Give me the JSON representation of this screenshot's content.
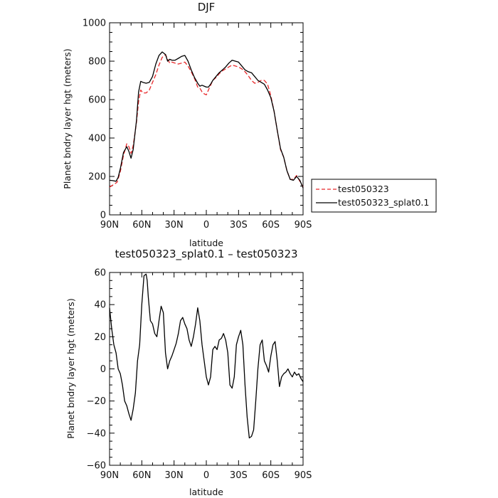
{
  "chart_data": [
    {
      "type": "line",
      "title": "DJF",
      "xlabel": "latitude",
      "ylabel": "Planet bndry layer hgt (meters)",
      "xlim": [
        90,
        -90
      ],
      "ylim": [
        0,
        1000
      ],
      "x_tick_values": [
        90,
        60,
        30,
        0,
        -30,
        -60,
        -90
      ],
      "x_tick_labels": [
        "90N",
        "60N",
        "30N",
        "0",
        "30S",
        "60S",
        "90S"
      ],
      "y_tick_values": [
        0,
        200,
        400,
        600,
        800,
        1000
      ],
      "y_tick_labels": [
        "0",
        "200",
        "400",
        "600",
        "800",
        "1000"
      ],
      "grid": false,
      "legend_position": "right",
      "series": [
        {
          "name": "test050323",
          "color": "#e8282a",
          "dash": "dashed",
          "x": [
            90,
            86,
            83,
            80,
            77,
            74,
            72,
            70,
            68,
            65,
            63,
            61,
            59,
            56,
            53,
            50,
            47,
            44,
            41,
            38,
            36,
            34,
            32,
            29,
            26,
            23,
            20,
            17,
            14,
            11,
            8,
            6,
            4,
            2,
            0,
            -2,
            -4,
            -6,
            -9,
            -12,
            -15,
            -18,
            -21,
            -24,
            -27,
            -30,
            -33,
            -36,
            -39,
            -42,
            -45,
            -48,
            -51,
            -54,
            -57,
            -60,
            -63,
            -66,
            -69,
            -72,
            -75,
            -78,
            -81,
            -84,
            -87,
            -90
          ],
          "y": [
            145,
            158,
            170,
            225,
            310,
            370,
            355,
            320,
            360,
            480,
            590,
            650,
            635,
            635,
            650,
            690,
            730,
            780,
            820,
            835,
            810,
            790,
            795,
            790,
            785,
            790,
            795,
            775,
            745,
            710,
            665,
            660,
            640,
            630,
            625,
            650,
            675,
            700,
            715,
            735,
            750,
            760,
            770,
            780,
            775,
            770,
            760,
            745,
            725,
            700,
            685,
            690,
            700,
            700,
            680,
            620,
            540,
            440,
            340,
            300,
            230,
            185,
            185,
            205,
            175,
            145
          ]
        },
        {
          "name": "test050323_splat0.1",
          "color": "#000000",
          "dash": "solid",
          "x": [
            90,
            87,
            84,
            82,
            80,
            77,
            74,
            72,
            70,
            68,
            65,
            63,
            61,
            59,
            56,
            53,
            50,
            47,
            44,
            41,
            38,
            36,
            34,
            32,
            29,
            26,
            23,
            20,
            17,
            14,
            11,
            8,
            6,
            4,
            2,
            0,
            -2,
            -4,
            -6,
            -9,
            -12,
            -15,
            -18,
            -21,
            -24,
            -27,
            -30,
            -33,
            -36,
            -39,
            -42,
            -45,
            -48,
            -51,
            -54,
            -57,
            -60,
            -63,
            -66,
            -69,
            -72,
            -75,
            -78,
            -81,
            -84,
            -87,
            -90
          ],
          "y": [
            180,
            178,
            175,
            195,
            240,
            325,
            355,
            330,
            295,
            340,
            490,
            640,
            695,
            690,
            685,
            690,
            720,
            785,
            830,
            848,
            835,
            800,
            810,
            805,
            805,
            815,
            825,
            830,
            800,
            755,
            715,
            685,
            670,
            675,
            670,
            665,
            665,
            680,
            700,
            720,
            740,
            755,
            770,
            790,
            805,
            800,
            795,
            775,
            755,
            745,
            740,
            720,
            700,
            690,
            680,
            650,
            610,
            540,
            440,
            345,
            300,
            230,
            185,
            180,
            200,
            180,
            140
          ]
        }
      ]
    },
    {
      "type": "line",
      "title": "test050323_splat0.1 – test050323",
      "xlabel": "latitude",
      "ylabel": "Planet bndry layer hgt (meters)",
      "xlim": [
        90,
        -90
      ],
      "ylim": [
        -60,
        60
      ],
      "x_tick_values": [
        90,
        60,
        30,
        0,
        -30,
        -60,
        -90
      ],
      "x_tick_labels": [
        "90N",
        "60N",
        "30N",
        "0",
        "30S",
        "60S",
        "90S"
      ],
      "y_tick_values": [
        -60,
        -40,
        -20,
        0,
        20,
        40,
        60
      ],
      "y_tick_labels": [
        "−60",
        "−40",
        "−20",
        "0",
        "20",
        "40",
        "60"
      ],
      "grid": false,
      "series": [
        {
          "color": "#000000",
          "dash": "solid",
          "x": [
            90,
            88,
            86,
            84,
            82,
            80,
            78,
            76,
            74,
            72,
            70,
            68,
            66,
            64,
            62,
            60,
            58,
            56,
            55,
            54,
            52,
            50,
            48,
            46,
            44,
            42,
            40,
            38,
            36,
            34,
            32,
            30,
            28,
            26,
            24,
            22,
            20,
            18,
            16,
            14,
            12,
            10,
            8,
            6,
            4,
            2,
            0,
            -2,
            -4,
            -6,
            -8,
            -10,
            -12,
            -14,
            -16,
            -18,
            -20,
            -22,
            -24,
            -26,
            -28,
            -30,
            -32,
            -34,
            -36,
            -38,
            -40,
            -42,
            -44,
            -46,
            -48,
            -50,
            -52,
            -54,
            -56,
            -58,
            -60,
            -62,
            -64,
            -66,
            -68,
            -70,
            -72,
            -74,
            -76,
            -78,
            -80,
            -82,
            -84,
            -86,
            -88,
            -90
          ],
          "y": [
            38,
            25,
            15,
            10,
            0,
            -3,
            -10,
            -20,
            -23,
            -28,
            -32,
            -25,
            -15,
            5,
            15,
            40,
            58,
            59,
            55,
            45,
            30,
            28,
            22,
            20,
            30,
            39,
            35,
            10,
            0,
            5,
            8,
            12,
            16,
            22,
            30,
            32,
            28,
            25,
            18,
            14,
            20,
            28,
            38,
            30,
            15,
            5,
            -5,
            -10,
            -5,
            12,
            14,
            12,
            18,
            19,
            22,
            18,
            10,
            -10,
            -12,
            -5,
            15,
            20,
            24,
            15,
            -10,
            -30,
            -43,
            -42,
            -38,
            -20,
            0,
            15,
            18,
            5,
            2,
            -2,
            8,
            15,
            17,
            5,
            -11,
            -5,
            -3,
            -2,
            0,
            -3,
            -5,
            -2,
            -4,
            -3,
            -6,
            -8
          ]
        }
      ]
    }
  ],
  "legend": {
    "entries": [
      "test050323",
      "test050323_splat0.1"
    ]
  }
}
